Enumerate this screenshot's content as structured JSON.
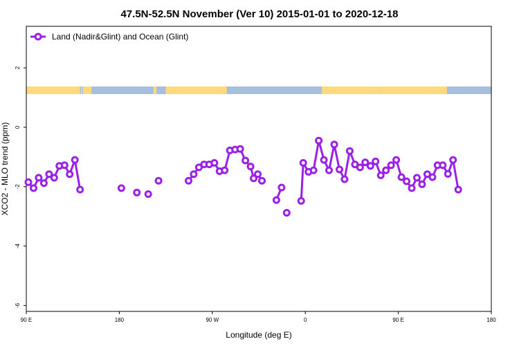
{
  "chart_data": {
    "type": "line",
    "title": "47.5N-52.5N November (Ver 10)   2015-01-01 to 2020-12-18",
    "xlabel": "Longitude (deg E)",
    "ylabel": "XCO2 - MLO trend (ppm)",
    "x_range_deg_e": [
      90,
      450
    ],
    "ylim": [
      -6.2,
      3.4
    ],
    "y_ticks": [
      2,
      0,
      -2,
      -4,
      -6
    ],
    "x_ticks": [
      {
        "value": 90,
        "label": "90 E"
      },
      {
        "value": 180,
        "label": "180"
      },
      {
        "value": 270,
        "label": "90 W"
      },
      {
        "value": 360,
        "label": "0"
      },
      {
        "value": 450,
        "label": "90 E"
      },
      {
        "value": 540,
        "label": "180"
      }
    ],
    "series": [
      {
        "name": "Land (Nadir&Glint) and Ocean (Glint)",
        "color": "#9a20e8",
        "segments": [
          [
            {
              "x": 92,
              "y": -1.85
            },
            {
              "x": 97,
              "y": -2.05
            },
            {
              "x": 102,
              "y": -1.7
            },
            {
              "x": 107,
              "y": -1.88
            },
            {
              "x": 112,
              "y": -1.58
            },
            {
              "x": 117,
              "y": -1.7
            },
            {
              "x": 122,
              "y": -1.3
            },
            {
              "x": 127,
              "y": -1.28
            },
            {
              "x": 132,
              "y": -1.58
            },
            {
              "x": 137,
              "y": -1.1
            },
            {
              "x": 142,
              "y": -2.1
            }
          ],
          [
            {
              "x": 182,
              "y": -2.05
            }
          ],
          [
            {
              "x": 197,
              "y": -2.2
            }
          ],
          [
            {
              "x": 208,
              "y": -2.25
            }
          ],
          [
            {
              "x": 218,
              "y": -1.8
            }
          ],
          [
            {
              "x": 247,
              "y": -1.8
            },
            {
              "x": 252,
              "y": -1.58
            },
            {
              "x": 257,
              "y": -1.35
            },
            {
              "x": 262,
              "y": -1.25
            },
            {
              "x": 267,
              "y": -1.25
            },
            {
              "x": 272,
              "y": -1.2
            },
            {
              "x": 277,
              "y": -1.48
            },
            {
              "x": 282,
              "y": -1.45
            },
            {
              "x": 287,
              "y": -0.78
            },
            {
              "x": 292,
              "y": -0.75
            },
            {
              "x": 297,
              "y": -0.73
            },
            {
              "x": 302,
              "y": -1.12
            },
            {
              "x": 307,
              "y": -1.32
            },
            {
              "x": 310,
              "y": -1.72
            },
            {
              "x": 314,
              "y": -1.58
            },
            {
              "x": 318,
              "y": -1.8
            }
          ],
          [
            {
              "x": 332,
              "y": -2.45
            },
            {
              "x": 337,
              "y": -2.03
            }
          ],
          [
            {
              "x": 342,
              "y": -2.88
            }
          ],
          [
            {
              "x": 356,
              "y": -2.48
            },
            {
              "x": 358,
              "y": -1.2
            },
            {
              "x": 363,
              "y": -1.5
            },
            {
              "x": 368,
              "y": -1.45
            },
            {
              "x": 373,
              "y": -0.45
            },
            {
              "x": 378,
              "y": -1.1
            },
            {
              "x": 383,
              "y": -1.45
            },
            {
              "x": 388,
              "y": -0.58
            },
            {
              "x": 393,
              "y": -1.42
            },
            {
              "x": 398,
              "y": -1.75
            },
            {
              "x": 403,
              "y": -0.8
            },
            {
              "x": 408,
              "y": -1.25
            },
            {
              "x": 413,
              "y": -1.35
            },
            {
              "x": 418,
              "y": -1.18
            },
            {
              "x": 423,
              "y": -1.3
            },
            {
              "x": 428,
              "y": -1.15
            },
            {
              "x": 433,
              "y": -1.62
            },
            {
              "x": 438,
              "y": -1.45
            },
            {
              "x": 443,
              "y": -1.28
            },
            {
              "x": 448,
              "y": -1.1
            },
            {
              "x": 453,
              "y": -1.68
            },
            {
              "x": 458,
              "y": -1.82
            },
            {
              "x": 463,
              "y": -2.05
            },
            {
              "x": 468,
              "y": -1.7
            },
            {
              "x": 473,
              "y": -1.92
            },
            {
              "x": 478,
              "y": -1.58
            },
            {
              "x": 483,
              "y": -1.68
            },
            {
              "x": 488,
              "y": -1.28
            },
            {
              "x": 493,
              "y": -1.28
            },
            {
              "x": 498,
              "y": -1.57
            },
            {
              "x": 503,
              "y": -1.1
            },
            {
              "x": 508,
              "y": -2.1
            }
          ]
        ]
      }
    ],
    "legend_position": "top-left",
    "grid": false,
    "land_ocean_strip": {
      "land_color": "#ffd97a",
      "ocean_color": "#a6bfdf",
      "land_ranges_deg_e": [
        [
          90,
          142
        ],
        [
          143,
          144
        ],
        [
          147,
          150
        ],
        [
          145,
          153
        ],
        [
          213,
          216
        ],
        [
          225,
          284
        ],
        [
          376,
          432
        ],
        [
          432,
          497
        ]
      ]
    }
  }
}
